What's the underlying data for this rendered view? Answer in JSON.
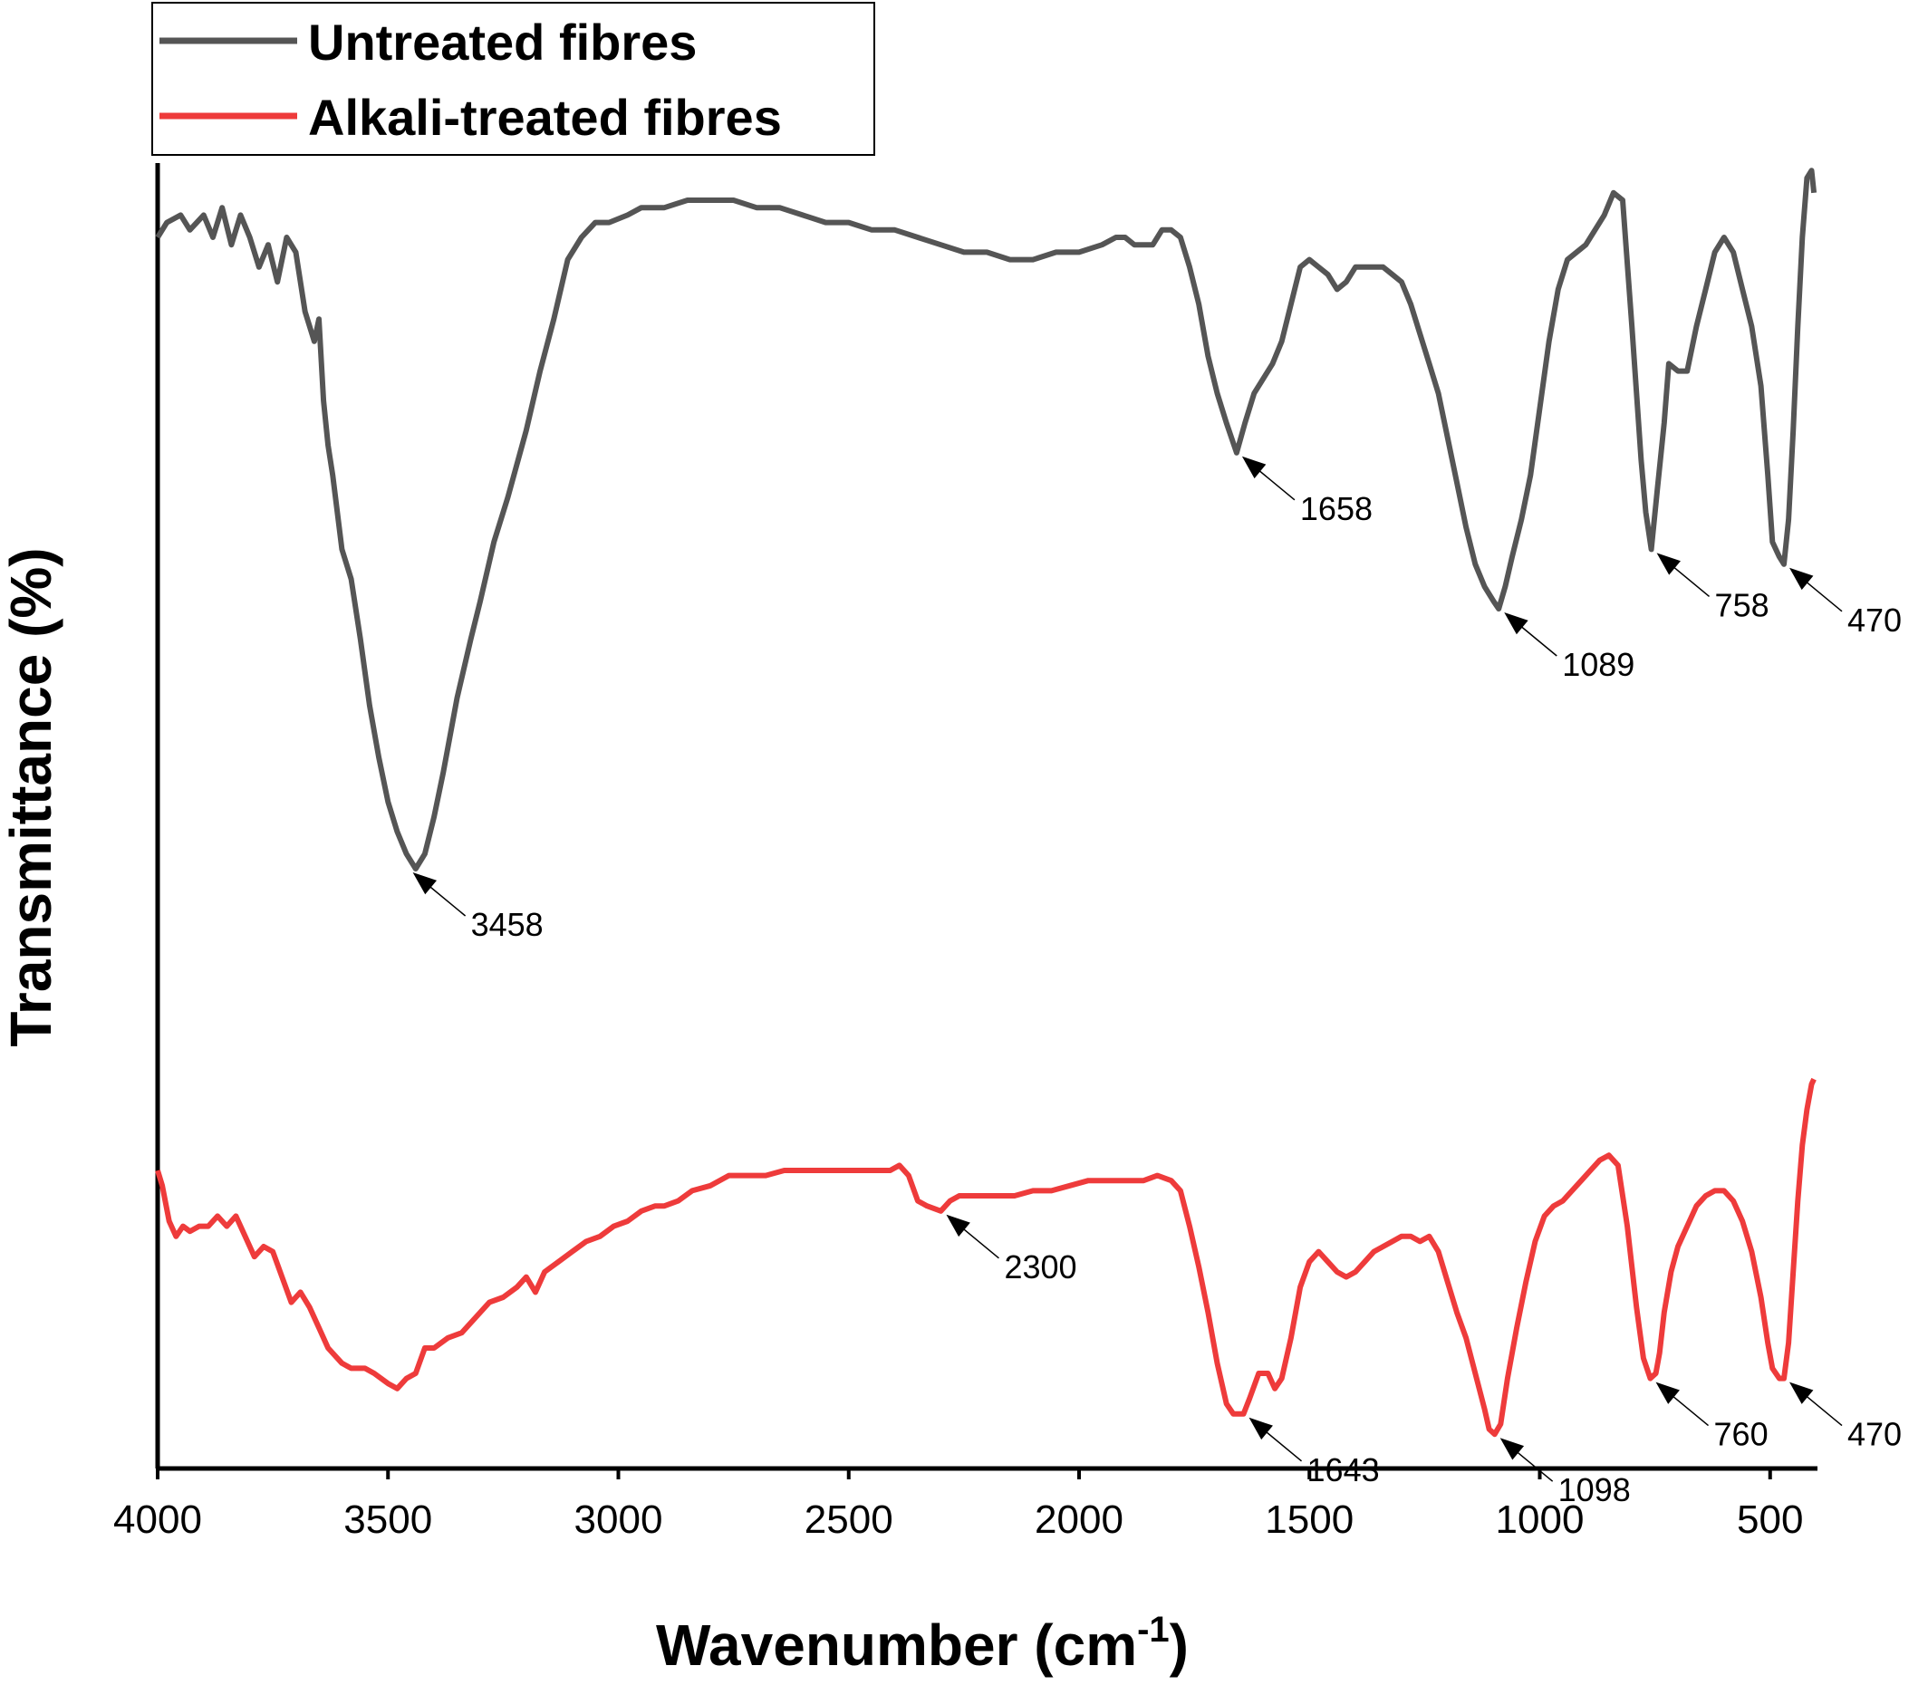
{
  "chart_data": {
    "type": "line",
    "title": "",
    "xlabel": "Wavenumber (cm",
    "xlabel_sup": "-1",
    "xlabel_close": ")",
    "ylabel": "Transmittance (%)",
    "xlim": [
      4000,
      400
    ],
    "x_reversed": true,
    "xticks": [
      "4000",
      "3500",
      "3000",
      "2500",
      "2000",
      "1500",
      "1000",
      "500"
    ],
    "y_tick_labels_shown": false,
    "grid": false,
    "legend_position": "top-left",
    "series": [
      {
        "name": "Untreated fibres",
        "color": "#555555",
        "points": [
          [
            4000,
            90
          ],
          [
            3980,
            92
          ],
          [
            3950,
            93
          ],
          [
            3930,
            91
          ],
          [
            3900,
            93
          ],
          [
            3880,
            90
          ],
          [
            3860,
            94
          ],
          [
            3840,
            89
          ],
          [
            3820,
            93
          ],
          [
            3800,
            90
          ],
          [
            3780,
            86
          ],
          [
            3760,
            89
          ],
          [
            3740,
            84
          ],
          [
            3720,
            90
          ],
          [
            3700,
            88
          ],
          [
            3680,
            80
          ],
          [
            3660,
            76
          ],
          [
            3650,
            79
          ],
          [
            3640,
            68
          ],
          [
            3630,
            62
          ],
          [
            3620,
            58
          ],
          [
            3600,
            48
          ],
          [
            3580,
            44
          ],
          [
            3560,
            36
          ],
          [
            3540,
            27
          ],
          [
            3520,
            20
          ],
          [
            3500,
            14
          ],
          [
            3480,
            10
          ],
          [
            3460,
            7
          ],
          [
            3440,
            5
          ],
          [
            3420,
            7
          ],
          [
            3400,
            12
          ],
          [
            3380,
            18
          ],
          [
            3350,
            28
          ],
          [
            3320,
            36
          ],
          [
            3300,
            41
          ],
          [
            3270,
            49
          ],
          [
            3240,
            55
          ],
          [
            3200,
            64
          ],
          [
            3170,
            72
          ],
          [
            3140,
            79
          ],
          [
            3110,
            87
          ],
          [
            3080,
            90
          ],
          [
            3050,
            92
          ],
          [
            3020,
            92
          ],
          [
            2980,
            93
          ],
          [
            2950,
            94
          ],
          [
            2900,
            94
          ],
          [
            2850,
            95
          ],
          [
            2800,
            95
          ],
          [
            2750,
            95
          ],
          [
            2700,
            94
          ],
          [
            2650,
            94
          ],
          [
            2600,
            93
          ],
          [
            2550,
            92
          ],
          [
            2500,
            92
          ],
          [
            2450,
            91
          ],
          [
            2400,
            91
          ],
          [
            2350,
            90
          ],
          [
            2300,
            89
          ],
          [
            2250,
            88
          ],
          [
            2200,
            88
          ],
          [
            2150,
            87
          ],
          [
            2100,
            87
          ],
          [
            2050,
            88
          ],
          [
            2000,
            88
          ],
          [
            1950,
            89
          ],
          [
            1920,
            90
          ],
          [
            1900,
            90
          ],
          [
            1880,
            89
          ],
          [
            1860,
            89
          ],
          [
            1840,
            89
          ],
          [
            1820,
            91
          ],
          [
            1800,
            91
          ],
          [
            1780,
            90
          ],
          [
            1760,
            86
          ],
          [
            1740,
            81
          ],
          [
            1720,
            74
          ],
          [
            1700,
            69
          ],
          [
            1680,
            65
          ],
          [
            1658,
            61
          ],
          [
            1640,
            65
          ],
          [
            1620,
            69
          ],
          [
            1600,
            71
          ],
          [
            1580,
            73
          ],
          [
            1560,
            76
          ],
          [
            1540,
            81
          ],
          [
            1520,
            86
          ],
          [
            1500,
            87
          ],
          [
            1480,
            86
          ],
          [
            1460,
            85
          ],
          [
            1440,
            83
          ],
          [
            1420,
            84
          ],
          [
            1400,
            86
          ],
          [
            1380,
            86
          ],
          [
            1360,
            86
          ],
          [
            1340,
            86
          ],
          [
            1320,
            85
          ],
          [
            1300,
            84
          ],
          [
            1280,
            81
          ],
          [
            1260,
            77
          ],
          [
            1240,
            73
          ],
          [
            1220,
            69
          ],
          [
            1200,
            63
          ],
          [
            1180,
            57
          ],
          [
            1160,
            51
          ],
          [
            1140,
            46
          ],
          [
            1120,
            43
          ],
          [
            1100,
            41
          ],
          [
            1089,
            40
          ],
          [
            1075,
            43
          ],
          [
            1060,
            47
          ],
          [
            1040,
            52
          ],
          [
            1020,
            58
          ],
          [
            1000,
            67
          ],
          [
            980,
            76
          ],
          [
            960,
            83
          ],
          [
            940,
            87
          ],
          [
            920,
            88
          ],
          [
            900,
            89
          ],
          [
            880,
            91
          ],
          [
            860,
            93
          ],
          [
            840,
            96
          ],
          [
            820,
            95
          ],
          [
            800,
            78
          ],
          [
            780,
            60
          ],
          [
            770,
            53
          ],
          [
            758,
            48
          ],
          [
            745,
            56
          ],
          [
            730,
            65
          ],
          [
            720,
            73
          ],
          [
            700,
            72
          ],
          [
            680,
            72
          ],
          [
            660,
            78
          ],
          [
            640,
            83
          ],
          [
            620,
            88
          ],
          [
            600,
            90
          ],
          [
            580,
            88
          ],
          [
            560,
            83
          ],
          [
            540,
            78
          ],
          [
            520,
            70
          ],
          [
            505,
            58
          ],
          [
            495,
            49
          ],
          [
            480,
            47
          ],
          [
            470,
            46
          ],
          [
            460,
            52
          ],
          [
            450,
            64
          ],
          [
            440,
            78
          ],
          [
            430,
            90
          ],
          [
            420,
            98
          ],
          [
            410,
            99
          ],
          [
            405,
            96
          ]
        ]
      },
      {
        "name": "Alkali-treated fibres",
        "color": "#ee3b3b",
        "points": [
          [
            4000,
            55
          ],
          [
            3990,
            52
          ],
          [
            3975,
            45
          ],
          [
            3960,
            42
          ],
          [
            3945,
            44
          ],
          [
            3930,
            43
          ],
          [
            3910,
            44
          ],
          [
            3890,
            44
          ],
          [
            3870,
            46
          ],
          [
            3850,
            44
          ],
          [
            3830,
            46
          ],
          [
            3810,
            42
          ],
          [
            3790,
            38
          ],
          [
            3770,
            40
          ],
          [
            3750,
            39
          ],
          [
            3730,
            34
          ],
          [
            3710,
            29
          ],
          [
            3690,
            31
          ],
          [
            3670,
            28
          ],
          [
            3650,
            24
          ],
          [
            3630,
            20
          ],
          [
            3600,
            17
          ],
          [
            3580,
            16
          ],
          [
            3550,
            16
          ],
          [
            3530,
            15
          ],
          [
            3500,
            13
          ],
          [
            3480,
            12
          ],
          [
            3460,
            14
          ],
          [
            3440,
            15
          ],
          [
            3420,
            20
          ],
          [
            3400,
            20
          ],
          [
            3370,
            22
          ],
          [
            3340,
            23
          ],
          [
            3310,
            26
          ],
          [
            3280,
            29
          ],
          [
            3250,
            30
          ],
          [
            3220,
            32
          ],
          [
            3200,
            34
          ],
          [
            3180,
            31
          ],
          [
            3160,
            35
          ],
          [
            3130,
            37
          ],
          [
            3100,
            39
          ],
          [
            3070,
            41
          ],
          [
            3040,
            42
          ],
          [
            3010,
            44
          ],
          [
            2980,
            45
          ],
          [
            2950,
            47
          ],
          [
            2920,
            48
          ],
          [
            2900,
            48
          ],
          [
            2870,
            49
          ],
          [
            2840,
            51
          ],
          [
            2800,
            52
          ],
          [
            2760,
            54
          ],
          [
            2720,
            54
          ],
          [
            2680,
            54
          ],
          [
            2640,
            55
          ],
          [
            2600,
            55
          ],
          [
            2560,
            55
          ],
          [
            2520,
            55
          ],
          [
            2480,
            55
          ],
          [
            2440,
            55
          ],
          [
            2410,
            55
          ],
          [
            2390,
            56
          ],
          [
            2370,
            54
          ],
          [
            2350,
            49
          ],
          [
            2330,
            48
          ],
          [
            2300,
            47
          ],
          [
            2280,
            49
          ],
          [
            2260,
            50
          ],
          [
            2230,
            50
          ],
          [
            2200,
            50
          ],
          [
            2170,
            50
          ],
          [
            2140,
            50
          ],
          [
            2100,
            51
          ],
          [
            2060,
            51
          ],
          [
            2020,
            52
          ],
          [
            1980,
            53
          ],
          [
            1950,
            53
          ],
          [
            1920,
            53
          ],
          [
            1890,
            53
          ],
          [
            1860,
            53
          ],
          [
            1830,
            54
          ],
          [
            1800,
            53
          ],
          [
            1780,
            51
          ],
          [
            1760,
            44
          ],
          [
            1740,
            36
          ],
          [
            1720,
            27
          ],
          [
            1700,
            17
          ],
          [
            1680,
            9
          ],
          [
            1665,
            7
          ],
          [
            1643,
            7
          ],
          [
            1630,
            10
          ],
          [
            1610,
            15
          ],
          [
            1590,
            15
          ],
          [
            1575,
            12
          ],
          [
            1560,
            14
          ],
          [
            1540,
            22
          ],
          [
            1520,
            32
          ],
          [
            1500,
            37
          ],
          [
            1480,
            39
          ],
          [
            1460,
            37
          ],
          [
            1440,
            35
          ],
          [
            1420,
            34
          ],
          [
            1400,
            35
          ],
          [
            1380,
            37
          ],
          [
            1360,
            39
          ],
          [
            1340,
            40
          ],
          [
            1320,
            41
          ],
          [
            1300,
            42
          ],
          [
            1280,
            42
          ],
          [
            1260,
            41
          ],
          [
            1240,
            42
          ],
          [
            1220,
            39
          ],
          [
            1200,
            33
          ],
          [
            1180,
            27
          ],
          [
            1160,
            22
          ],
          [
            1140,
            15
          ],
          [
            1120,
            8
          ],
          [
            1110,
            4
          ],
          [
            1098,
            3
          ],
          [
            1085,
            5
          ],
          [
            1070,
            14
          ],
          [
            1050,
            24
          ],
          [
            1030,
            33
          ],
          [
            1010,
            41
          ],
          [
            990,
            46
          ],
          [
            970,
            48
          ],
          [
            950,
            49
          ],
          [
            930,
            51
          ],
          [
            910,
            53
          ],
          [
            890,
            55
          ],
          [
            870,
            57
          ],
          [
            850,
            58
          ],
          [
            830,
            56
          ],
          [
            810,
            44
          ],
          [
            790,
            28
          ],
          [
            775,
            18
          ],
          [
            760,
            14
          ],
          [
            748,
            15
          ],
          [
            740,
            19
          ],
          [
            730,
            27
          ],
          [
            715,
            35
          ],
          [
            700,
            40
          ],
          [
            680,
            44
          ],
          [
            660,
            48
          ],
          [
            640,
            50
          ],
          [
            620,
            51
          ],
          [
            600,
            51
          ],
          [
            580,
            49
          ],
          [
            560,
            45
          ],
          [
            540,
            39
          ],
          [
            520,
            30
          ],
          [
            505,
            21
          ],
          [
            495,
            16
          ],
          [
            480,
            14
          ],
          [
            470,
            14
          ],
          [
            460,
            21
          ],
          [
            450,
            35
          ],
          [
            440,
            49
          ],
          [
            430,
            60
          ],
          [
            420,
            67
          ],
          [
            410,
            72
          ],
          [
            405,
            73
          ]
        ]
      }
    ],
    "annotations": [
      {
        "series": 0,
        "x": 3458,
        "y": 5,
        "text": "3458"
      },
      {
        "series": 0,
        "x": 1658,
        "y": 61,
        "text": "1658"
      },
      {
        "series": 0,
        "x": 1089,
        "y": 40,
        "text": "1089"
      },
      {
        "series": 0,
        "x": 758,
        "y": 48,
        "text": "758"
      },
      {
        "series": 0,
        "x": 470,
        "y": 46,
        "text": "470"
      },
      {
        "series": 1,
        "x": 2300,
        "y": 47,
        "text": "2300"
      },
      {
        "series": 1,
        "x": 1643,
        "y": 7,
        "text": "1643"
      },
      {
        "series": 1,
        "x": 1098,
        "y": 3,
        "text": "1098"
      },
      {
        "series": 1,
        "x": 760,
        "y": 14,
        "text": "760"
      },
      {
        "series": 1,
        "x": 470,
        "y": 14,
        "text": "470"
      }
    ]
  }
}
